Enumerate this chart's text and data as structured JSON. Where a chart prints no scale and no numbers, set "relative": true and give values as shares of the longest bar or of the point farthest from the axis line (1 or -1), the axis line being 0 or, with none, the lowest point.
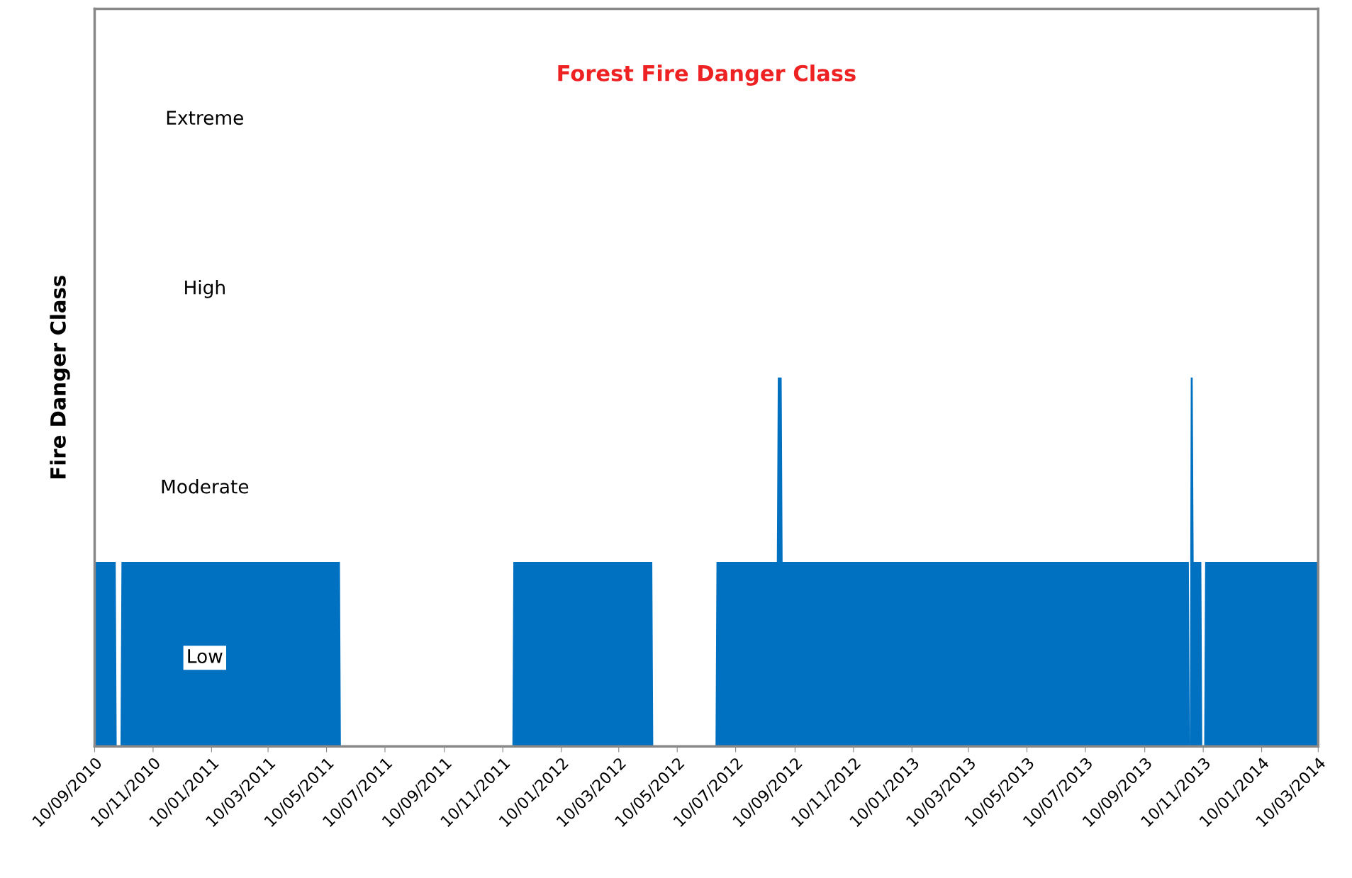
{
  "chart_data": {
    "type": "area",
    "title": "Forest Fire Danger Class",
    "ylabel": "Fire Danger Class",
    "x": [
      "2010-09-10",
      "2010-10-02",
      "2010-10-03",
      "2010-10-07",
      "2010-10-08",
      "2011-05-24",
      "2011-05-25",
      "2011-11-20",
      "2011-11-21",
      "2012-04-14",
      "2012-04-15",
      "2012-06-19",
      "2012-06-20",
      "2012-08-22",
      "2012-08-23",
      "2012-08-27",
      "2012-08-28",
      "2013-10-26",
      "2013-10-27",
      "2013-10-28",
      "2013-10-30",
      "2013-10-31",
      "2013-11-08",
      "2013-11-09",
      "2013-11-11",
      "2013-11-12",
      "2014-03-10"
    ],
    "relative": true,
    "series": [
      {
        "color": "#0070c0",
        "values": [
          0.5,
          0.5,
          0,
          0,
          0.5,
          0.5,
          0,
          0,
          0.5,
          0.5,
          0,
          0,
          0.5,
          0.5,
          1,
          1,
          0.5,
          0.5,
          0,
          1,
          1,
          0.5,
          0.5,
          0,
          0,
          0.5,
          0.5
        ]
      }
    ],
    "xlim": [
      "2010-09-10",
      "2014-03-10"
    ],
    "xticks": [
      {
        "value": "2010-09-10",
        "label": "10/09/2010"
      },
      {
        "value": "2010-11-10",
        "label": "10/11/2010"
      },
      {
        "value": "2011-01-10",
        "label": "10/01/2011"
      },
      {
        "value": "2011-03-10",
        "label": "10/03/2011"
      },
      {
        "value": "2011-05-10",
        "label": "10/05/2011"
      },
      {
        "value": "2011-07-10",
        "label": "10/07/2011"
      },
      {
        "value": "2011-09-10",
        "label": "10/09/2011"
      },
      {
        "value": "2011-11-10",
        "label": "10/11/2011"
      },
      {
        "value": "2012-01-10",
        "label": "10/01/2012"
      },
      {
        "value": "2012-03-10",
        "label": "10/03/2012"
      },
      {
        "value": "2012-05-10",
        "label": "10/05/2012"
      },
      {
        "value": "2012-07-10",
        "label": "10/07/2012"
      },
      {
        "value": "2012-09-10",
        "label": "10/09/2012"
      },
      {
        "value": "2012-11-10",
        "label": "10/11/2012"
      },
      {
        "value": "2013-01-10",
        "label": "10/01/2013"
      },
      {
        "value": "2013-03-10",
        "label": "10/03/2013"
      },
      {
        "value": "2013-05-10",
        "label": "10/05/2013"
      },
      {
        "value": "2013-07-10",
        "label": "10/07/2013"
      },
      {
        "value": "2013-09-10",
        "label": "10/09/2013"
      },
      {
        "value": "2013-11-10",
        "label": "10/11/2013"
      },
      {
        "value": "2014-01-10",
        "label": "10/01/2014"
      },
      {
        "value": "2014-03-10",
        "label": "10/03/2014"
      }
    ],
    "ylim": [
      0,
      2
    ],
    "annotations": [
      "Low",
      "Moderate",
      "High",
      "Extreme"
    ]
  }
}
